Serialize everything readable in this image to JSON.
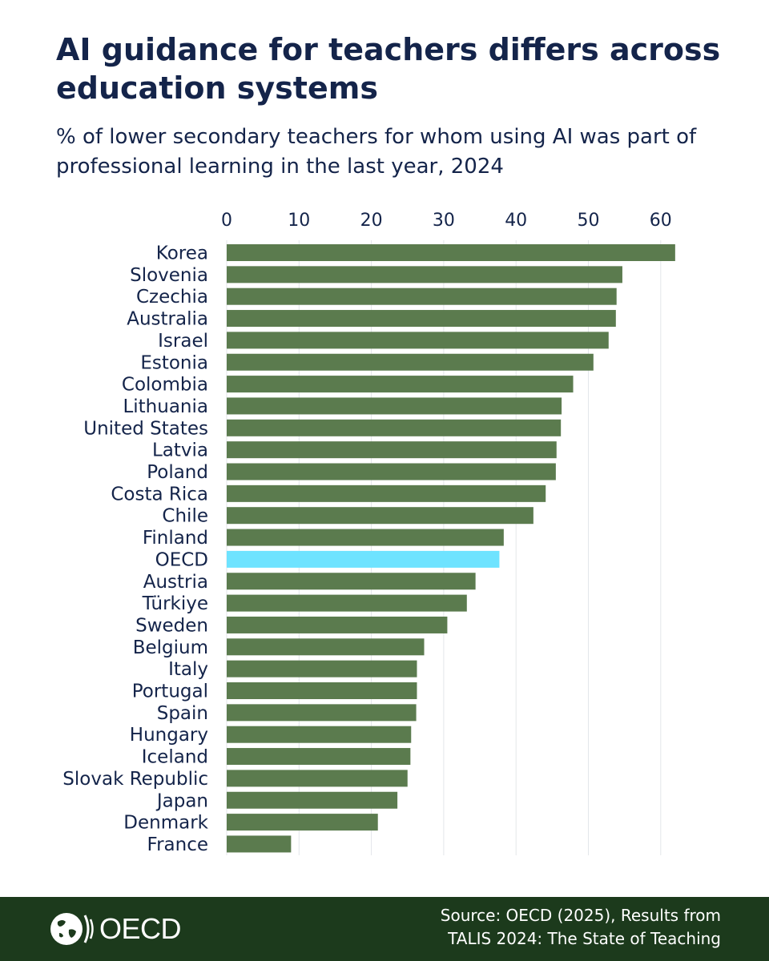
{
  "title": "AI guidance for teachers differs across education systems",
  "subtitle": "% of lower secondary teachers for whom using AI was part of professional learning in the last year, 2024",
  "chart_data": {
    "type": "bar",
    "orientation": "horizontal",
    "xlim": [
      0,
      65
    ],
    "x_ticks": [
      0,
      10,
      20,
      30,
      40,
      50,
      60
    ],
    "grid": true,
    "colors": {
      "default": "#5b7b4e",
      "highlight": "#6ee3ff"
    },
    "highlight_category": "OECD",
    "categories": [
      "Korea",
      "Slovenia",
      "Czechia",
      "Australia",
      "Israel",
      "Estonia",
      "Colombia",
      "Lithuania",
      "United States",
      "Latvia",
      "Poland",
      "Costa Rica",
      "Chile",
      "Finland",
      "OECD",
      "Austria",
      "Türkiye",
      "Sweden",
      "Belgium",
      "Italy",
      "Portugal",
      "Spain",
      "Hungary",
      "Iceland",
      "Slovak Republic",
      "Japan",
      "Denmark",
      "France"
    ],
    "values": [
      62.0,
      54.7,
      53.9,
      53.8,
      52.8,
      50.7,
      47.9,
      46.3,
      46.2,
      45.6,
      45.5,
      44.1,
      42.4,
      38.3,
      37.7,
      34.4,
      33.2,
      30.5,
      27.3,
      26.3,
      26.3,
      26.2,
      25.5,
      25.4,
      25.0,
      23.6,
      20.9,
      8.9
    ]
  },
  "footer": {
    "logo_text": "OECD",
    "source_line1": "Source: OECD (2025), Results from",
    "source_line2": "TALIS 2024: The State of Teaching",
    "background": "#1c3a1c"
  }
}
